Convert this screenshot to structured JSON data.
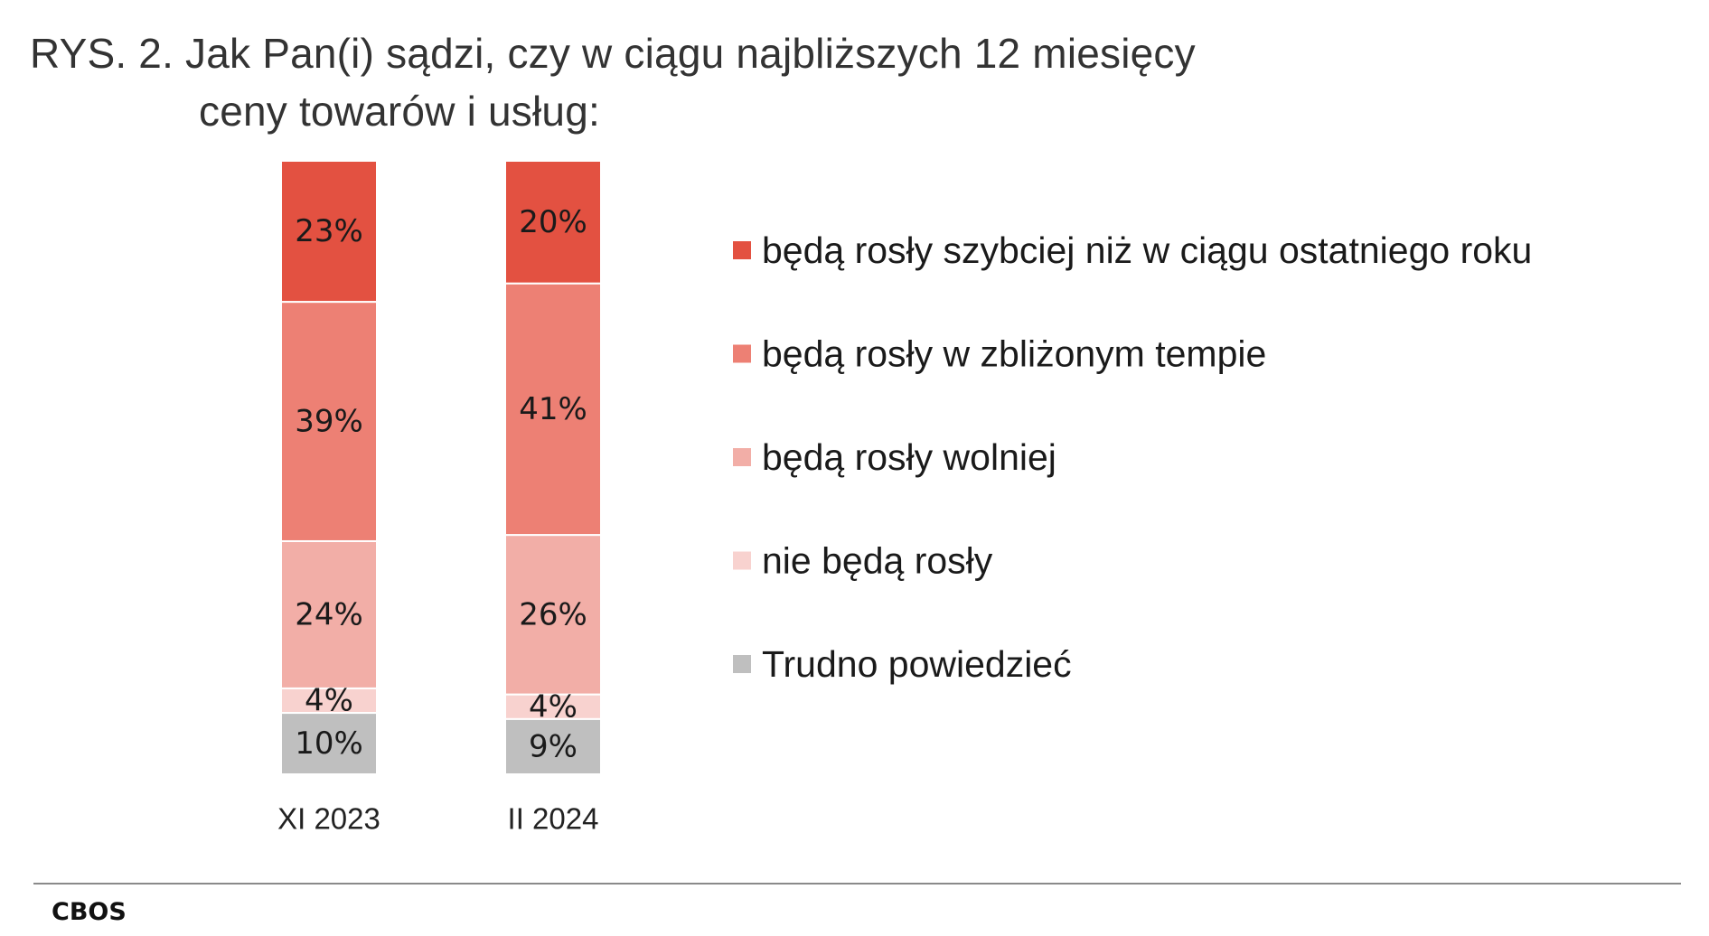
{
  "title": {
    "line1": "RYS. 2. Jak Pan(i) sądzi, czy w ciągu najbliższych 12 miesięcy",
    "line2": "ceny towarów i usług:"
  },
  "source": "CBOS",
  "chart_data": {
    "type": "bar",
    "stacked": true,
    "orientation": "vertical",
    "categories": [
      "XI 2023",
      "II 2024"
    ],
    "series": [
      {
        "name": "będą rosły szybciej niż w ciągu ostatniego roku",
        "color": "#e35141",
        "values": [
          23,
          20
        ],
        "labels": [
          "23%",
          "20%"
        ]
      },
      {
        "name": "będą rosły w zbliżonym tempie",
        "color": "#ed8074",
        "values": [
          39,
          41
        ],
        "labels": [
          "39%",
          "41%"
        ]
      },
      {
        "name": "będą rosły wolniej",
        "color": "#f2aea7",
        "values": [
          24,
          26
        ],
        "labels": [
          "24%",
          "26%"
        ]
      },
      {
        "name": "nie będą rosły",
        "color": "#f8d2cf",
        "values": [
          4,
          4
        ],
        "labels": [
          "4%",
          "4%"
        ]
      },
      {
        "name": "Trudno powiedzieć",
        "color": "#bfbfbf",
        "values": [
          10,
          9
        ],
        "labels": [
          "10%",
          "9%"
        ]
      }
    ],
    "legend_position": "right",
    "grid": false
  }
}
